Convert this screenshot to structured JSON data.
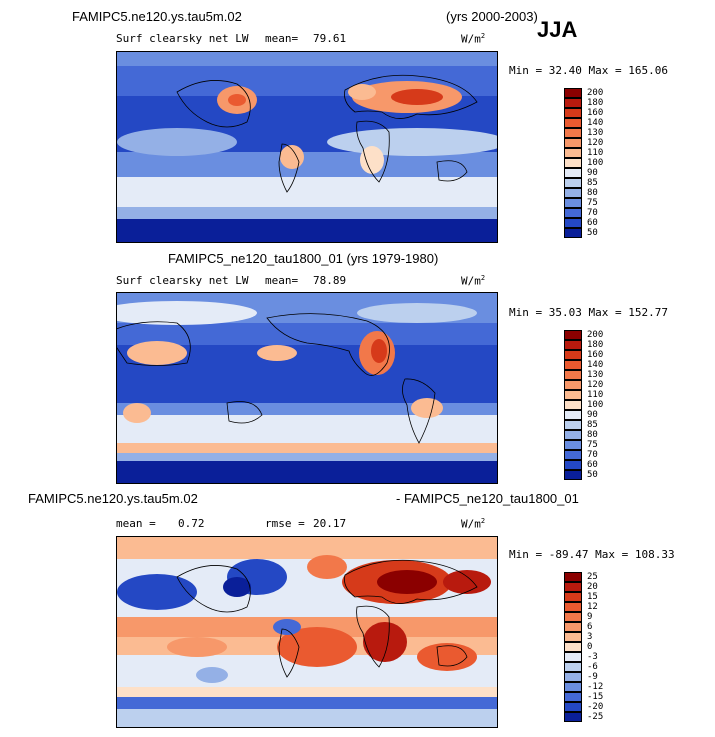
{
  "top_title": "FAMIPC5.ne120.ys.tau5m.02",
  "top_years": "(yrs 2000-2003)",
  "season": "JJA",
  "panels": [
    {
      "subtitle": "Surf clearsky net LW",
      "mean_label": "mean=",
      "mean_value": "79.61",
      "units": "W/m",
      "units_sup": "2",
      "minmax": "Min =  32.40 Max = 165.06",
      "colorbar": {
        "labels": [
          "200",
          "180",
          "160",
          "140",
          "130",
          "120",
          "110",
          "100",
          "90",
          "85",
          "80",
          "75",
          "70",
          "60",
          "50"
        ],
        "colors": [
          "#8b0000",
          "#b81a0e",
          "#d63a1a",
          "#ea5a30",
          "#f2784a",
          "#f7986a",
          "#fbbb92",
          "#fde0c8",
          "#e4ebf7",
          "#bcd0ee",
          "#94b0e6",
          "#6a8ee0",
          "#4469d6",
          "#2448c4",
          "#0a1f99"
        ]
      }
    },
    {
      "title": "FAMIPC5_ne120_tau1800_01 (yrs 1979-1980)",
      "subtitle": "Surf clearsky net LW",
      "mean_label": "mean=",
      "mean_value": "78.89",
      "units": "W/m",
      "units_sup": "2",
      "minmax": "Min =  35.03 Max = 152.77",
      "colorbar": {
        "labels": [
          "200",
          "180",
          "160",
          "140",
          "130",
          "120",
          "110",
          "100",
          "90",
          "85",
          "80",
          "75",
          "70",
          "60",
          "50"
        ],
        "colors": [
          "#8b0000",
          "#b81a0e",
          "#d63a1a",
          "#ea5a30",
          "#f2784a",
          "#f7986a",
          "#fbbb92",
          "#fde0c8",
          "#e4ebf7",
          "#bcd0ee",
          "#94b0e6",
          "#6a8ee0",
          "#4469d6",
          "#2448c4",
          "#0a1f99"
        ]
      }
    },
    {
      "title_left": "FAMIPC5.ne120.ys.tau5m.02",
      "title_right": "- FAMIPC5_ne120_tau1800_01",
      "mean_label": "mean =",
      "mean_value": "0.72",
      "rmse_label": "rmse =",
      "rmse_value": "20.17",
      "units": "W/m",
      "units_sup": "2",
      "minmax": "Min = -89.47 Max = 108.33",
      "colorbar": {
        "labels": [
          "25",
          "20",
          "15",
          "12",
          "9",
          "6",
          "3",
          "0",
          "-3",
          "-6",
          "-9",
          "-12",
          "-15",
          "-20",
          "-25"
        ],
        "colors": [
          "#8b0000",
          "#b81a0e",
          "#d63a1a",
          "#ea5a30",
          "#f2784a",
          "#f7986a",
          "#fbbb92",
          "#fde0c8",
          "#e4ebf7",
          "#bcd0ee",
          "#94b0e6",
          "#6a8ee0",
          "#4469d6",
          "#2448c4",
          "#0a1f99"
        ]
      }
    }
  ]
}
